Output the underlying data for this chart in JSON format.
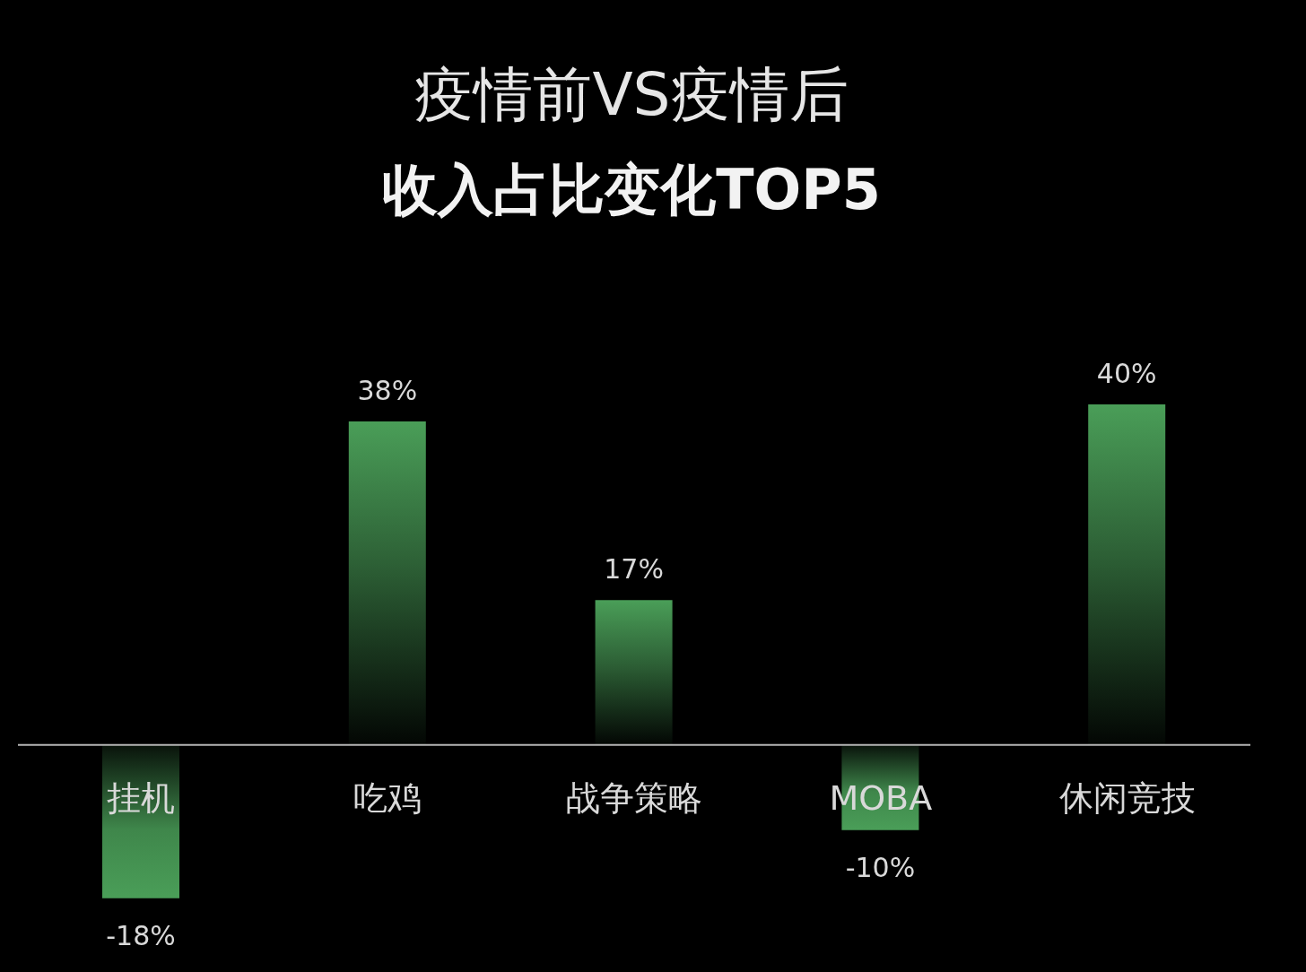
{
  "chart_data": {
    "type": "bar",
    "title": "疫情前VS疫情后",
    "subtitle": "收入占比变化TOP5",
    "categories": [
      "挂机",
      "吃鸡",
      "战争策略",
      "MOBA",
      "休闲竞技"
    ],
    "values": [
      -18,
      38,
      17,
      -10,
      40
    ],
    "color": "#4a9e58",
    "value_labels": [
      "-18%",
      "38%",
      "17%",
      "-10%",
      "40%"
    ]
  }
}
